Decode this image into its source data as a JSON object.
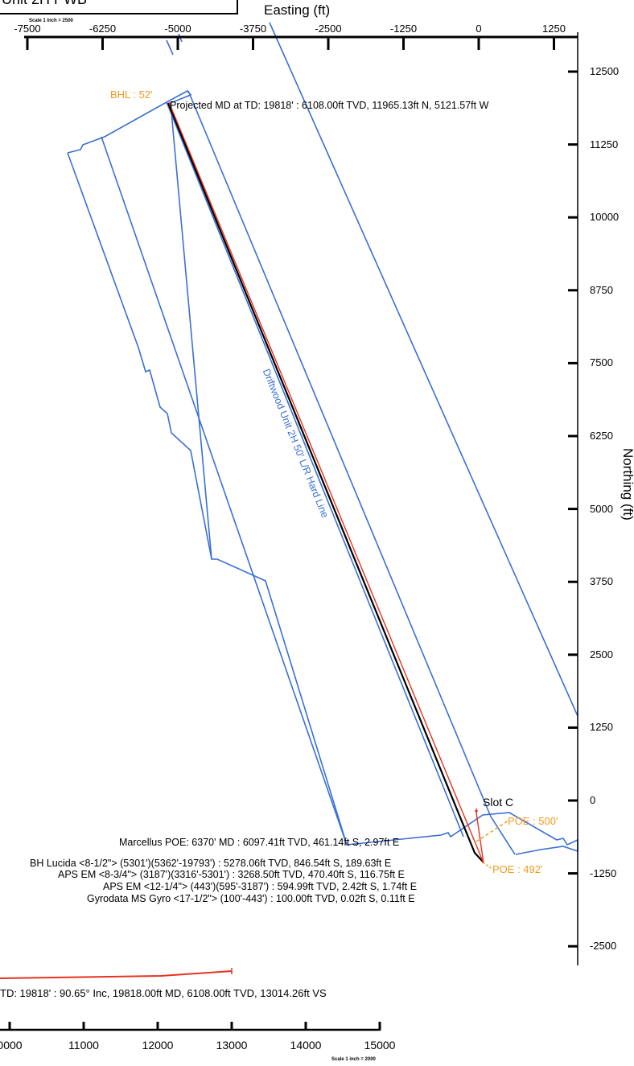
{
  "header": {
    "title_fragment": "Unit 2H PWB",
    "scale_top": "Scale 1 inch = 2500",
    "scale_bottom": "Scale 1 inch = 2000"
  },
  "axes": {
    "easting_title": "Easting (ft)",
    "northing_title": "Northing (ft)",
    "easting_ticks": [
      "-7500",
      "-6250",
      "-5000",
      "-3750",
      "-2500",
      "-1250",
      "0",
      "1250"
    ],
    "northing_ticks": [
      "12500",
      "11250",
      "10000",
      "8750",
      "7500",
      "6250",
      "5000",
      "3750",
      "2500",
      "1250",
      "0",
      "-1250",
      "-2500"
    ],
    "section_ticks": [
      "0000",
      "11000",
      "12000",
      "13000",
      "14000",
      "15000"
    ]
  },
  "labels": {
    "bhl": "BHL : 52'",
    "projected": "Projected MD at TD: 19818' : 6108.00ft TVD, 11965.13ft N, 5121.57ft W",
    "hard_line": "Driftwood Unit 2H 50' L/R Hard Line",
    "slot": "Slot C",
    "poe_500": "POE : 500'",
    "poe_492": "POE : 492'",
    "marcellus": "Marcellus POE: 6370' MD : 6097.41ft TVD, 461.14ft S, 2.97ft E",
    "survey_1": "BH Lucida <8-1/2\"> (5301')(5362'-19793') : 5278.06ft TVD, 846.54ft S, 189.63ft E",
    "survey_2": "APS EM <8-3/4\"> (3187')(3316'-5301') : 3268.50ft TVD, 470.40ft S, 116.75ft E",
    "survey_3": "APS EM <12-1/4\"> (443')(595'-3187') : 594.99ft TVD, 2.42ft S, 1.74ft E",
    "survey_4": "Gyrodata MS Gyro <17-1/2\"> (100'-443') : 100.00ft TVD, 0.02ft S, 0.11ft E",
    "section_td": "TD: 19818' : 90.65° Inc, 19818.00ft MD, 6108.00ft TVD, 13014.26ft VS"
  },
  "colors": {
    "boundary": "#3a6fd6",
    "plan_line": "#000000",
    "wellpath": "#e8321e",
    "annotation": "#f29a1e",
    "text": "#000000"
  },
  "well": {
    "surface": {
      "easting": 0,
      "northing": 0
    },
    "bottom_hole": {
      "easting": -5121.57,
      "northing": 11965.13
    }
  }
}
